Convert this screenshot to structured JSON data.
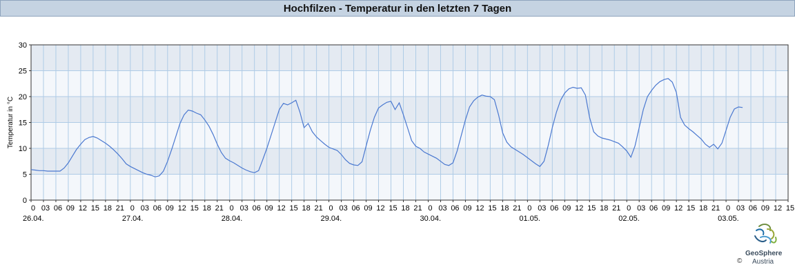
{
  "chart_data": {
    "type": "line",
    "title": "Hochfilzen - Temperatur in den letzten 7 Tagen",
    "ylabel": "Temperatur in °C",
    "xlabel": "",
    "ylim": [
      0,
      30
    ],
    "yticks": [
      0,
      5,
      10,
      15,
      20,
      25,
      30
    ],
    "x_start": "26.04. 00:00",
    "x_end": "03.05. 15:00",
    "hour_tick_labels": [
      "0",
      "03",
      "06",
      "09",
      "12",
      "15",
      "18",
      "21",
      "0",
      "03",
      "06",
      "09",
      "12",
      "15",
      "18",
      "21",
      "0",
      "03",
      "06",
      "09",
      "12",
      "15",
      "18",
      "21",
      "0",
      "03",
      "06",
      "09",
      "12",
      "15",
      "18",
      "21",
      "0",
      "03",
      "06",
      "09",
      "12",
      "15",
      "18",
      "21",
      "0",
      "03",
      "06",
      "09",
      "12",
      "15",
      "18",
      "21",
      "0",
      "03",
      "06",
      "09",
      "12",
      "15",
      "18",
      "21",
      "0",
      "03",
      "06",
      "09",
      "12",
      "15"
    ],
    "date_labels": [
      "26.04.",
      "27.04.",
      "28.04.",
      "29.04.",
      "30.04.",
      "01.05.",
      "02.05.",
      "03.05."
    ],
    "grid": true,
    "line_color": "#4a78d0",
    "series": [
      {
        "points": [
          [
            0,
            5.9
          ],
          [
            1,
            5.8
          ],
          [
            2,
            5.7
          ],
          [
            3,
            5.7
          ],
          [
            4,
            5.6
          ],
          [
            5,
            5.6
          ],
          [
            6,
            5.6
          ],
          [
            7,
            5.6
          ],
          [
            8,
            6.2
          ],
          [
            9,
            7.2
          ],
          [
            10,
            8.5
          ],
          [
            11,
            9.8
          ],
          [
            12,
            10.8
          ],
          [
            13,
            11.7
          ],
          [
            14,
            12.1
          ],
          [
            15,
            12.3
          ],
          [
            16,
            12.0
          ],
          [
            17,
            11.5
          ],
          [
            18,
            11.0
          ],
          [
            19,
            10.4
          ],
          [
            20,
            9.7
          ],
          [
            21,
            8.9
          ],
          [
            22,
            8.0
          ],
          [
            23,
            7.0
          ],
          [
            24,
            6.5
          ],
          [
            25,
            6.1
          ],
          [
            26,
            5.7
          ],
          [
            27,
            5.3
          ],
          [
            28,
            5.0
          ],
          [
            29,
            4.8
          ],
          [
            30,
            4.5
          ],
          [
            31,
            4.7
          ],
          [
            32,
            5.6
          ],
          [
            33,
            7.5
          ],
          [
            34,
            9.8
          ],
          [
            35,
            12.3
          ],
          [
            36,
            14.8
          ],
          [
            37,
            16.5
          ],
          [
            38,
            17.4
          ],
          [
            39,
            17.2
          ],
          [
            40,
            16.8
          ],
          [
            41,
            16.5
          ],
          [
            42,
            15.5
          ],
          [
            43,
            14.3
          ],
          [
            44,
            12.7
          ],
          [
            45,
            10.8
          ],
          [
            46,
            9.2
          ],
          [
            47,
            8.1
          ],
          [
            48,
            7.6
          ],
          [
            49,
            7.2
          ],
          [
            50,
            6.7
          ],
          [
            51,
            6.2
          ],
          [
            52,
            5.8
          ],
          [
            53,
            5.5
          ],
          [
            54,
            5.3
          ],
          [
            55,
            5.7
          ],
          [
            56,
            7.8
          ],
          [
            57,
            10.0
          ],
          [
            58,
            12.5
          ],
          [
            59,
            15.0
          ],
          [
            60,
            17.5
          ],
          [
            61,
            18.7
          ],
          [
            62,
            18.4
          ],
          [
            63,
            18.8
          ],
          [
            64,
            19.3
          ],
          [
            65,
            17.0
          ],
          [
            66,
            14.0
          ],
          [
            67,
            14.8
          ],
          [
            68,
            13.2
          ],
          [
            69,
            12.2
          ],
          [
            70,
            11.5
          ],
          [
            71,
            10.8
          ],
          [
            72,
            10.2
          ],
          [
            73,
            9.9
          ],
          [
            74,
            9.6
          ],
          [
            75,
            8.8
          ],
          [
            76,
            7.8
          ],
          [
            77,
            7.1
          ],
          [
            78,
            6.8
          ],
          [
            79,
            6.7
          ],
          [
            80,
            7.4
          ],
          [
            81,
            10.5
          ],
          [
            82,
            13.5
          ],
          [
            83,
            16.0
          ],
          [
            84,
            17.8
          ],
          [
            85,
            18.4
          ],
          [
            86,
            18.9
          ],
          [
            87,
            19.1
          ],
          [
            88,
            17.5
          ],
          [
            89,
            18.8
          ],
          [
            90,
            16.5
          ],
          [
            91,
            14.0
          ],
          [
            92,
            11.5
          ],
          [
            93,
            10.4
          ],
          [
            94,
            10.0
          ],
          [
            95,
            9.3
          ],
          [
            96,
            8.9
          ],
          [
            97,
            8.5
          ],
          [
            98,
            8.1
          ],
          [
            99,
            7.5
          ],
          [
            100,
            6.9
          ],
          [
            101,
            6.7
          ],
          [
            102,
            7.2
          ],
          [
            103,
            9.5
          ],
          [
            104,
            12.5
          ],
          [
            105,
            15.5
          ],
          [
            106,
            18.0
          ],
          [
            107,
            19.2
          ],
          [
            108,
            19.9
          ],
          [
            109,
            20.3
          ],
          [
            110,
            20.1
          ],
          [
            111,
            20.0
          ],
          [
            112,
            19.4
          ],
          [
            113,
            16.5
          ],
          [
            114,
            13.0
          ],
          [
            115,
            11.2
          ],
          [
            116,
            10.3
          ],
          [
            117,
            9.8
          ],
          [
            118,
            9.3
          ],
          [
            119,
            8.8
          ],
          [
            120,
            8.2
          ],
          [
            121,
            7.6
          ],
          [
            122,
            7.0
          ],
          [
            123,
            6.5
          ],
          [
            124,
            7.5
          ],
          [
            125,
            10.5
          ],
          [
            126,
            14.0
          ],
          [
            127,
            17.0
          ],
          [
            128,
            19.3
          ],
          [
            129,
            20.7
          ],
          [
            130,
            21.5
          ],
          [
            131,
            21.8
          ],
          [
            132,
            21.6
          ],
          [
            133,
            21.7
          ],
          [
            134,
            20.3
          ],
          [
            135,
            16.0
          ],
          [
            136,
            13.2
          ],
          [
            137,
            12.4
          ],
          [
            138,
            12.0
          ],
          [
            139,
            11.8
          ],
          [
            140,
            11.6
          ],
          [
            141,
            11.3
          ],
          [
            142,
            11.0
          ],
          [
            143,
            10.3
          ],
          [
            144,
            9.5
          ],
          [
            145,
            8.3
          ],
          [
            146,
            10.5
          ],
          [
            147,
            14.0
          ],
          [
            148,
            17.5
          ],
          [
            149,
            20.0
          ],
          [
            150,
            21.2
          ],
          [
            151,
            22.2
          ],
          [
            152,
            22.9
          ],
          [
            153,
            23.3
          ],
          [
            154,
            23.5
          ],
          [
            155,
            22.8
          ],
          [
            156,
            20.8
          ],
          [
            157,
            16.0
          ],
          [
            158,
            14.5
          ],
          [
            159,
            13.8
          ],
          [
            160,
            13.2
          ],
          [
            161,
            12.5
          ],
          [
            162,
            11.8
          ],
          [
            163,
            10.8
          ],
          [
            164,
            10.2
          ],
          [
            165,
            10.8
          ],
          [
            166,
            9.9
          ],
          [
            167,
            11.0
          ],
          [
            168,
            13.5
          ],
          [
            169,
            16.0
          ],
          [
            170,
            17.6
          ],
          [
            171,
            18.0
          ],
          [
            172,
            17.9
          ]
        ]
      }
    ]
  },
  "branding": {
    "logo_name": "GeoSphere",
    "logo_sub": "Austria",
    "copyright": "©"
  }
}
